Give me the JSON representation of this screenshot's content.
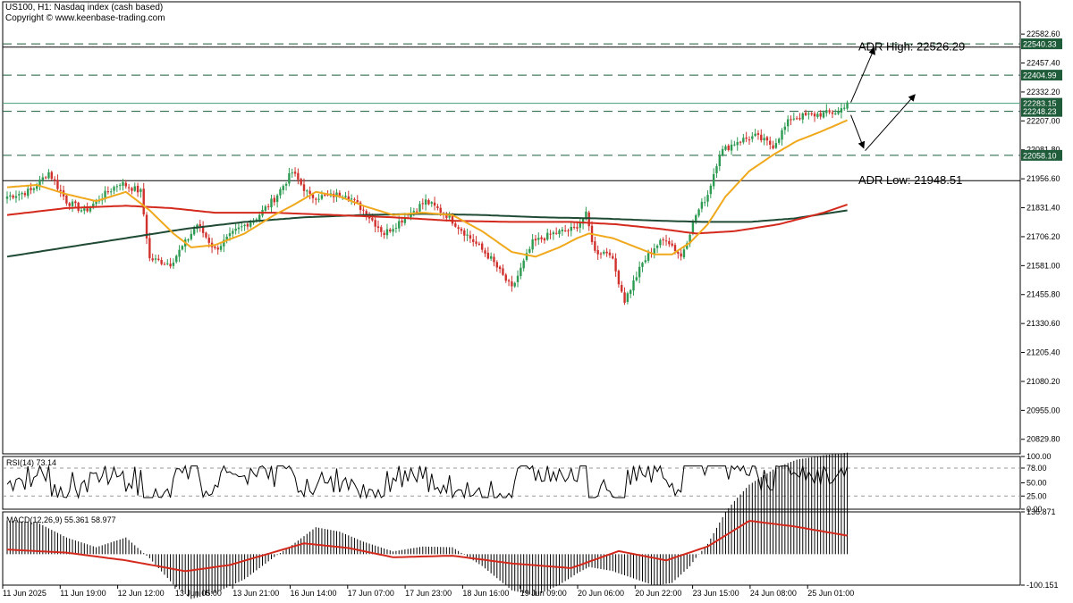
{
  "header": {
    "symbol_line": "US100, H1:  Nasdaq index (cash based)",
    "copyright": "Copyright © www.keenbase-trading.com"
  },
  "chart_data": [
    {
      "type": "candlestick",
      "name": "main",
      "ylim": [
        20767,
        22645
      ],
      "y_ticks": [
        22582.6,
        22457.4,
        22332.2,
        22207.0,
        22081.8,
        21956.6,
        21831.4,
        21706.2,
        21581.0,
        21455.8,
        21330.6,
        21205.4,
        21080.2,
        20955.0,
        20829.8
      ],
      "x_ticks": [
        "11 Jun 2025",
        "11 Jun 19:00",
        "12 Jun 12:00",
        "13 Jun 05:00",
        "13 Jun 21:00",
        "16 Jun 14:00",
        "17 Jun 07:00",
        "17 Jun 23:00",
        "18 Jun 16:00",
        "19 Jun 09:00",
        "20 Jun 06:00",
        "20 Jun 22:00",
        "23 Jun 15:00",
        "24 Jun 08:00",
        "25 Jun 01:00"
      ],
      "grid": false,
      "colors": {
        "up": "#2e9b52",
        "down": "#d0312d",
        "ma_fast": "#f0a81c",
        "ma_mid": "#d42a1e",
        "ma_slow": "#1f4a34"
      },
      "close_anchors": [
        [
          0,
          21880
        ],
        [
          8,
          21905
        ],
        [
          14,
          21985
        ],
        [
          20,
          21860
        ],
        [
          26,
          21815
        ],
        [
          32,
          21880
        ],
        [
          38,
          21940
        ],
        [
          45,
          21900
        ],
        [
          48,
          21610
        ],
        [
          55,
          21590
        ],
        [
          60,
          21680
        ],
        [
          64,
          21760
        ],
        [
          70,
          21650
        ],
        [
          77,
          21730
        ],
        [
          84,
          21790
        ],
        [
          90,
          21870
        ],
        [
          96,
          21985
        ],
        [
          102,
          21880
        ],
        [
          108,
          21880
        ],
        [
          114,
          21895
        ],
        [
          120,
          21820
        ],
        [
          127,
          21720
        ],
        [
          134,
          21790
        ],
        [
          141,
          21860
        ],
        [
          148,
          21800
        ],
        [
          156,
          21700
        ],
        [
          163,
          21610
        ],
        [
          170,
          21480
        ],
        [
          177,
          21680
        ],
        [
          184,
          21720
        ],
        [
          191,
          21740
        ],
        [
          195,
          21800
        ],
        [
          198,
          21640
        ],
        [
          203,
          21640
        ],
        [
          208,
          21430
        ],
        [
          214,
          21590
        ],
        [
          218,
          21660
        ],
        [
          222,
          21700
        ],
        [
          227,
          21620
        ],
        [
          232,
          21800
        ],
        [
          236,
          21890
        ],
        [
          240,
          22070
        ],
        [
          246,
          22120
        ],
        [
          252,
          22140
        ],
        [
          258,
          22100
        ],
        [
          264,
          22220
        ],
        [
          270,
          22230
        ],
        [
          276,
          22240
        ],
        [
          280,
          22245
        ],
        [
          283,
          22290
        ]
      ],
      "ma_anchors": {
        "fast": [
          [
            0,
            21920
          ],
          [
            10,
            21930
          ],
          [
            20,
            21890
          ],
          [
            30,
            21860
          ],
          [
            40,
            21900
          ],
          [
            48,
            21820
          ],
          [
            56,
            21720
          ],
          [
            62,
            21660
          ],
          [
            70,
            21670
          ],
          [
            80,
            21720
          ],
          [
            90,
            21800
          ],
          [
            96,
            21840
          ],
          [
            104,
            21900
          ],
          [
            112,
            21880
          ],
          [
            120,
            21840
          ],
          [
            130,
            21800
          ],
          [
            140,
            21810
          ],
          [
            150,
            21800
          ],
          [
            160,
            21730
          ],
          [
            170,
            21640
          ],
          [
            178,
            21620
          ],
          [
            186,
            21660
          ],
          [
            192,
            21700
          ],
          [
            196,
            21720
          ],
          [
            204,
            21700
          ],
          [
            212,
            21660
          ],
          [
            218,
            21630
          ],
          [
            224,
            21630
          ],
          [
            230,
            21680
          ],
          [
            236,
            21760
          ],
          [
            242,
            21880
          ],
          [
            250,
            21990
          ],
          [
            258,
            22060
          ],
          [
            266,
            22120
          ],
          [
            274,
            22160
          ],
          [
            283,
            22210
          ]
        ],
        "mid": [
          [
            0,
            21800
          ],
          [
            20,
            21830
          ],
          [
            40,
            21840
          ],
          [
            55,
            21830
          ],
          [
            70,
            21810
          ],
          [
            90,
            21810
          ],
          [
            110,
            21800
          ],
          [
            130,
            21790
          ],
          [
            150,
            21775
          ],
          [
            170,
            21770
          ],
          [
            190,
            21770
          ],
          [
            205,
            21760
          ],
          [
            220,
            21740
          ],
          [
            232,
            21720
          ],
          [
            245,
            21730
          ],
          [
            260,
            21760
          ],
          [
            275,
            21810
          ],
          [
            283,
            21845
          ]
        ],
        "slow": [
          [
            0,
            21620
          ],
          [
            20,
            21660
          ],
          [
            40,
            21700
          ],
          [
            60,
            21740
          ],
          [
            80,
            21770
          ],
          [
            100,
            21790
          ],
          [
            120,
            21800
          ],
          [
            140,
            21805
          ],
          [
            160,
            21800
          ],
          [
            180,
            21790
          ],
          [
            200,
            21785
          ],
          [
            220,
            21775
          ],
          [
            235,
            21770
          ],
          [
            250,
            21770
          ],
          [
            265,
            21785
          ],
          [
            283,
            21820
          ]
        ]
      },
      "levels": [
        {
          "value": 22540.33,
          "label": "22540.33",
          "style": "dashed",
          "color": "#1f5c3a"
        },
        {
          "value": 22404.99,
          "label": "22404.99",
          "style": "dashed",
          "color": "#1f5c3a"
        },
        {
          "value": 22283.15,
          "label": "22283.15",
          "style": "solid",
          "color": "#4a9d74"
        },
        {
          "value": 22248.23,
          "label": "22248.23",
          "style": "dashed",
          "color": "#1f5c3a"
        },
        {
          "value": 22058.1,
          "label": "22058.10",
          "style": "dashed",
          "color": "#1f5c3a"
        }
      ],
      "solid_lines": [
        22526.29,
        21948.51
      ],
      "annotations": [
        {
          "text": "ADR High: 22526.29",
          "value": 22526.29
        },
        {
          "text": "ADR Low: 21948.51",
          "value": 21948.51
        }
      ]
    },
    {
      "type": "line",
      "name": "rsi",
      "title": "RSI(14) 73.14",
      "ylim": [
        0,
        100
      ],
      "y_ticks": [
        "100.00",
        "78.00",
        "50.00",
        "25.00",
        "0.00"
      ],
      "levels": [
        78,
        25
      ],
      "color": "#000000"
    },
    {
      "type": "histogram",
      "name": "macd",
      "title": "MACD(12,26,9) 55.361 58.977",
      "ylim": [
        -100.151,
        136.871
      ],
      "y_ticks": [
        "136.871",
        "-100.151"
      ],
      "signal_color": "#d42a1e",
      "signal_anchors": [
        [
          0,
          15
        ],
        [
          20,
          5
        ],
        [
          40,
          -20
        ],
        [
          60,
          -55
        ],
        [
          75,
          -35
        ],
        [
          100,
          35
        ],
        [
          115,
          20
        ],
        [
          130,
          -10
        ],
        [
          150,
          -5
        ],
        [
          170,
          -30
        ],
        [
          190,
          -45
        ],
        [
          206,
          10
        ],
        [
          222,
          -20
        ],
        [
          236,
          25
        ],
        [
          250,
          108
        ],
        [
          265,
          90
        ],
        [
          283,
          60
        ]
      ]
    }
  ]
}
